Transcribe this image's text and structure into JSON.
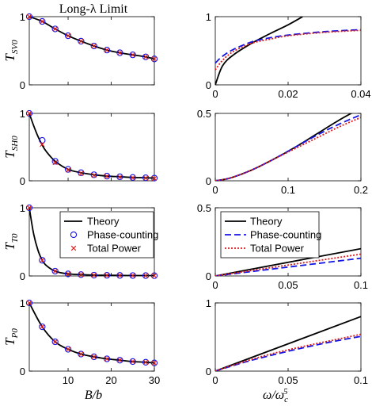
{
  "figure_title": "Long-λ Limit",
  "colors": {
    "theory": "#000000",
    "phase_counting": "#1414e6",
    "total_power": "#e01a1a"
  },
  "left_xlabel": "B/b",
  "right_xlabel": "ω/ω",
  "right_xlabel_sub": "c",
  "right_xlabel_sup": "5",
  "legend_left": [
    "Theory",
    "Phase-counting",
    "Total Power"
  ],
  "legend_right": [
    "Theory",
    "Phase-counting",
    "Total Power"
  ],
  "row_ylabels": [
    {
      "main": "T",
      "sub": "SV0"
    },
    {
      "main": "T",
      "sub": "SH0"
    },
    {
      "main": "T",
      "sub": "T0"
    },
    {
      "main": "T",
      "sub": "P0"
    }
  ],
  "chart_data": [
    {
      "type": "line",
      "panel": "SV0-left",
      "xlabel": "B/b",
      "ylabel": "T_SV0",
      "xlim": [
        1,
        30
      ],
      "ylim": [
        0,
        1
      ],
      "xticks": [
        10,
        20,
        30
      ],
      "xtick_labels": [
        "",
        "",
        ""
      ],
      "yticks": [
        0,
        1
      ],
      "ytick_labels": [
        "0",
        "1"
      ],
      "series": [
        {
          "name": "Theory",
          "style": "line",
          "x": [
            1,
            4,
            7,
            10,
            13,
            16,
            19,
            22,
            25,
            28,
            30
          ],
          "y": [
            1.0,
            0.93,
            0.82,
            0.72,
            0.64,
            0.57,
            0.51,
            0.47,
            0.44,
            0.41,
            0.38
          ]
        },
        {
          "name": "Phase-counting",
          "style": "circle",
          "x": [
            1,
            4,
            7,
            10,
            13,
            16,
            19,
            22,
            25,
            28,
            30
          ],
          "y": [
            1.0,
            0.93,
            0.82,
            0.72,
            0.64,
            0.57,
            0.51,
            0.47,
            0.44,
            0.41,
            0.38
          ]
        },
        {
          "name": "Total Power",
          "style": "x",
          "x": [
            1,
            4,
            7,
            10,
            13,
            16,
            19,
            22,
            25,
            28,
            30
          ],
          "y": [
            1.0,
            0.93,
            0.82,
            0.72,
            0.64,
            0.57,
            0.51,
            0.47,
            0.44,
            0.41,
            0.38
          ]
        }
      ]
    },
    {
      "type": "line",
      "panel": "SV0-right",
      "xlabel": "ω/ω_c^5",
      "ylabel": "T_SV0",
      "xlim": [
        0,
        0.04
      ],
      "ylim": [
        0,
        1
      ],
      "xticks": [
        0,
        0.02,
        0.04
      ],
      "xtick_labels": [
        "0",
        "0.02",
        "0.04"
      ],
      "yticks": [
        0,
        1
      ],
      "ytick_labels": [
        "0",
        "1"
      ],
      "series": [
        {
          "name": "Theory",
          "style": "solid",
          "x": [
            0,
            0.002,
            0.005,
            0.01,
            0.015,
            0.02,
            0.024
          ],
          "y": [
            0,
            0.28,
            0.44,
            0.61,
            0.75,
            0.88,
            1.0
          ]
        },
        {
          "name": "Phase-counting",
          "style": "dashed",
          "x": [
            0,
            0.002,
            0.005,
            0.01,
            0.015,
            0.02,
            0.03,
            0.04
          ],
          "y": [
            0.32,
            0.42,
            0.52,
            0.63,
            0.69,
            0.73,
            0.78,
            0.81
          ]
        },
        {
          "name": "Total Power",
          "style": "dotted",
          "x": [
            0,
            0.002,
            0.005,
            0.01,
            0.015,
            0.02,
            0.03,
            0.04
          ],
          "y": [
            0.22,
            0.36,
            0.49,
            0.61,
            0.67,
            0.72,
            0.77,
            0.8
          ]
        }
      ]
    },
    {
      "type": "line",
      "panel": "SH0-left",
      "xlabel": "B/b",
      "ylabel": "T_SH0",
      "xlim": [
        1,
        30
      ],
      "ylim": [
        0,
        1
      ],
      "xticks": [
        10,
        20,
        30
      ],
      "xtick_labels": [
        "",
        "",
        ""
      ],
      "yticks": [
        0,
        1
      ],
      "ytick_labels": [
        "0",
        "1"
      ],
      "series": [
        {
          "name": "Theory",
          "style": "line",
          "x": [
            1,
            2,
            3,
            4,
            5,
            7,
            10,
            13,
            16,
            19,
            22,
            25,
            28,
            30
          ],
          "y": [
            1.0,
            0.82,
            0.66,
            0.53,
            0.43,
            0.29,
            0.17,
            0.12,
            0.09,
            0.07,
            0.06,
            0.05,
            0.045,
            0.04
          ]
        },
        {
          "name": "Phase-counting",
          "style": "circle",
          "x": [
            1,
            4,
            7,
            10,
            13,
            16,
            19,
            22,
            25,
            28,
            30
          ],
          "y": [
            1.0,
            0.6,
            0.29,
            0.17,
            0.12,
            0.09,
            0.07,
            0.06,
            0.05,
            0.045,
            0.04
          ]
        },
        {
          "name": "Total Power",
          "style": "x",
          "x": [
            1,
            4,
            7,
            10,
            13,
            16,
            19,
            22,
            25,
            28,
            30
          ],
          "y": [
            1.0,
            0.54,
            0.27,
            0.16,
            0.11,
            0.08,
            0.065,
            0.055,
            0.045,
            0.04,
            0.035
          ]
        }
      ]
    },
    {
      "type": "line",
      "panel": "SH0-right",
      "xlabel": "ω/ω_c^5",
      "ylabel": "T_SH0",
      "xlim": [
        0,
        0.2
      ],
      "ylim": [
        0,
        0.5
      ],
      "xticks": [
        0,
        0.1,
        0.2
      ],
      "xtick_labels": [
        "0",
        "0.1",
        "0.2"
      ],
      "yticks": [
        0,
        0.5
      ],
      "ytick_labels": [
        "0",
        "0.5"
      ],
      "series": [
        {
          "name": "Theory",
          "style": "solid",
          "x": [
            0,
            0.02,
            0.05,
            0.08,
            0.11,
            0.14,
            0.17,
            0.19
          ],
          "y": [
            0,
            0.02,
            0.08,
            0.16,
            0.25,
            0.35,
            0.45,
            0.51
          ]
        },
        {
          "name": "Phase-counting",
          "style": "dashed",
          "x": [
            0,
            0.02,
            0.05,
            0.08,
            0.11,
            0.14,
            0.17,
            0.2
          ],
          "y": [
            0,
            0.02,
            0.08,
            0.16,
            0.25,
            0.34,
            0.42,
            0.49
          ]
        },
        {
          "name": "Total Power",
          "style": "dotted",
          "x": [
            0,
            0.02,
            0.05,
            0.08,
            0.11,
            0.14,
            0.17,
            0.2
          ],
          "y": [
            0,
            0.02,
            0.08,
            0.16,
            0.24,
            0.32,
            0.4,
            0.47
          ]
        }
      ]
    },
    {
      "type": "line",
      "panel": "T0-left",
      "xlabel": "B/b",
      "ylabel": "T_T0",
      "xlim": [
        1,
        30
      ],
      "ylim": [
        0,
        1
      ],
      "xticks": [
        10,
        20,
        30
      ],
      "xtick_labels": [
        "",
        "",
        ""
      ],
      "yticks": [
        0,
        1
      ],
      "ytick_labels": [
        "0",
        "1"
      ],
      "series": [
        {
          "name": "Theory",
          "style": "line",
          "x": [
            1,
            2,
            3,
            4,
            5,
            7,
            10,
            13,
            16,
            19,
            22,
            25,
            28,
            30
          ],
          "y": [
            1.0,
            0.62,
            0.38,
            0.23,
            0.15,
            0.07,
            0.03,
            0.02,
            0.012,
            0.01,
            0.008,
            0.006,
            0.005,
            0.004
          ]
        },
        {
          "name": "Phase-counting",
          "style": "circle",
          "x": [
            1,
            4,
            7,
            10,
            13,
            16,
            19,
            22,
            25,
            28,
            30
          ],
          "y": [
            1.0,
            0.23,
            0.07,
            0.03,
            0.02,
            0.012,
            0.01,
            0.008,
            0.006,
            0.005,
            0.004
          ]
        },
        {
          "name": "Total Power",
          "style": "x",
          "x": [
            1,
            4,
            7,
            10,
            13,
            16,
            19,
            22,
            25,
            28,
            30
          ],
          "y": [
            1.0,
            0.23,
            0.07,
            0.03,
            0.02,
            0.012,
            0.01,
            0.008,
            0.006,
            0.005,
            0.004
          ]
        }
      ]
    },
    {
      "type": "line",
      "panel": "T0-right",
      "xlabel": "ω/ω_c^5",
      "ylabel": "T_T0",
      "xlim": [
        0,
        0.1
      ],
      "ylim": [
        0,
        0.5
      ],
      "xticks": [
        0,
        0.05,
        0.1
      ],
      "xtick_labels": [
        "0",
        "0.05",
        "0.1"
      ],
      "yticks": [
        0,
        0.5
      ],
      "ytick_labels": [
        "0",
        "0.5"
      ],
      "series": [
        {
          "name": "Theory",
          "style": "solid",
          "x": [
            0,
            0.1
          ],
          "y": [
            0,
            0.2
          ]
        },
        {
          "name": "Phase-counting",
          "style": "dashed",
          "x": [
            0,
            0.1
          ],
          "y": [
            0,
            0.13
          ]
        },
        {
          "name": "Total Power",
          "style": "dotted",
          "x": [
            0,
            0.1
          ],
          "y": [
            0,
            0.16
          ]
        }
      ]
    },
    {
      "type": "line",
      "panel": "P0-left",
      "xlabel": "B/b",
      "ylabel": "T_P0",
      "xlim": [
        1,
        30
      ],
      "ylim": [
        0,
        1
      ],
      "xticks": [
        10,
        20,
        30
      ],
      "xtick_labels": [
        "10",
        "20",
        "30"
      ],
      "yticks": [
        0,
        1
      ],
      "ytick_labels": [
        "0",
        "1"
      ],
      "series": [
        {
          "name": "Theory",
          "style": "line",
          "x": [
            1,
            4,
            7,
            10,
            13,
            16,
            19,
            22,
            25,
            28,
            30
          ],
          "y": [
            1.0,
            0.65,
            0.43,
            0.32,
            0.25,
            0.21,
            0.18,
            0.16,
            0.14,
            0.13,
            0.12
          ]
        },
        {
          "name": "Phase-counting",
          "style": "circle",
          "x": [
            1,
            4,
            7,
            10,
            13,
            16,
            19,
            22,
            25,
            28,
            30
          ],
          "y": [
            1.0,
            0.65,
            0.43,
            0.32,
            0.25,
            0.21,
            0.18,
            0.16,
            0.14,
            0.13,
            0.12
          ]
        },
        {
          "name": "Total Power",
          "style": "x",
          "x": [
            1,
            4,
            7,
            10,
            13,
            16,
            19,
            22,
            25,
            28,
            30
          ],
          "y": [
            1.0,
            0.65,
            0.43,
            0.32,
            0.25,
            0.21,
            0.18,
            0.16,
            0.14,
            0.13,
            0.12
          ]
        }
      ]
    },
    {
      "type": "line",
      "panel": "P0-right",
      "xlabel": "ω/ω_c^5",
      "ylabel": "T_P0",
      "xlim": [
        0,
        0.1
      ],
      "ylim": [
        0,
        1
      ],
      "xticks": [
        0,
        0.05,
        0.1
      ],
      "xtick_labels": [
        "0",
        "0.05",
        "0.1"
      ],
      "yticks": [
        0,
        1
      ],
      "ytick_labels": [
        "0",
        "1"
      ],
      "series": [
        {
          "name": "Theory",
          "style": "solid",
          "x": [
            0,
            0.1
          ],
          "y": [
            0,
            0.8
          ]
        },
        {
          "name": "Phase-counting",
          "style": "dashed",
          "x": [
            0,
            0.02,
            0.04,
            0.06,
            0.08,
            0.1
          ],
          "y": [
            0,
            0.13,
            0.24,
            0.34,
            0.43,
            0.51
          ]
        },
        {
          "name": "Total Power",
          "style": "dotted",
          "x": [
            0,
            0.02,
            0.04,
            0.06,
            0.08,
            0.1
          ],
          "y": [
            0,
            0.14,
            0.26,
            0.36,
            0.45,
            0.54
          ]
        }
      ]
    }
  ]
}
